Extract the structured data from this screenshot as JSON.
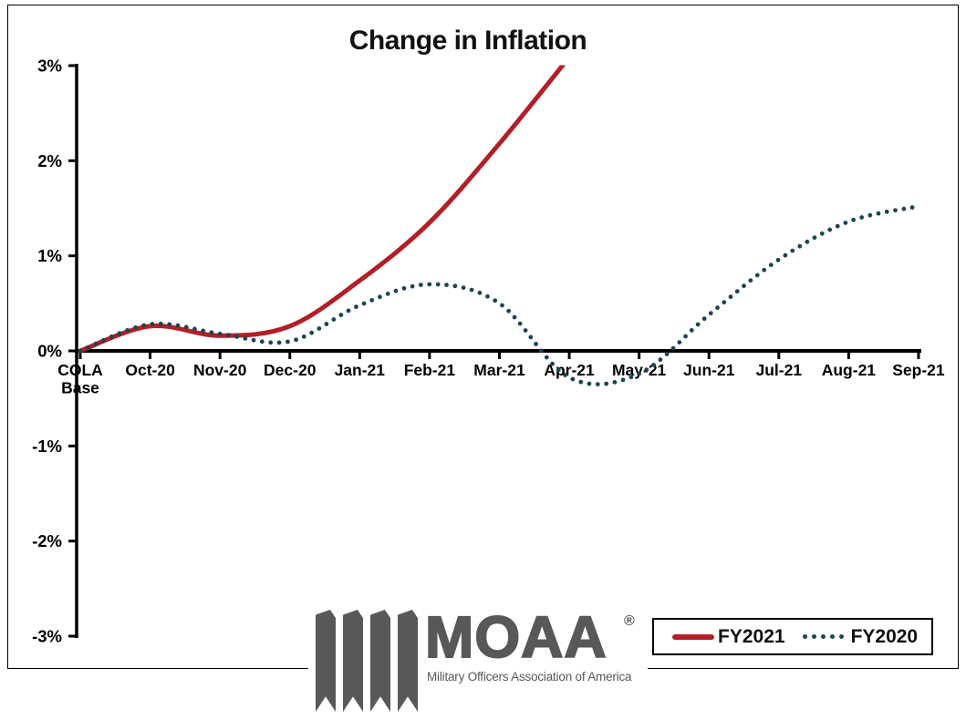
{
  "chart_data": {
    "type": "line",
    "title": "Change in Inflation",
    "categories": [
      "COLA\nBase",
      "Oct-20",
      "Nov-20",
      "Dec-20",
      "Jan-21",
      "Feb-21",
      "Mar-21",
      "Apr-21",
      "May-21",
      "Jun-21",
      "Jul-21",
      "Aug-21",
      "Sep-21"
    ],
    "xlabel": "",
    "ylabel": "",
    "ylim": [
      -3,
      3
    ],
    "y_tick_step": 1,
    "y_tick_labels": [
      "3%",
      "2%",
      "1%",
      "0%",
      "-1%",
      "-2%",
      "-3%"
    ],
    "y_tick_suffix": "%",
    "grid": false,
    "legend_position": "bottom-right",
    "series": [
      {
        "name": "FY2021",
        "style": "solid",
        "color": "#b21f26",
        "values": [
          0,
          0.26,
          0.16,
          0.26,
          0.74,
          1.35,
          2.18,
          3.09,
          null,
          null,
          null,
          null,
          null
        ],
        "clipped_at_axis_max": true
      },
      {
        "name": "FY2020",
        "style": "dotted",
        "color": "#1b4551",
        "values": [
          0,
          0.28,
          0.18,
          0.1,
          0.48,
          0.7,
          0.5,
          -0.28,
          -0.24,
          0.38,
          0.96,
          1.36,
          1.52
        ],
        "clipped_at_axis_max": false
      }
    ]
  },
  "legend": {
    "items": [
      "FY2021",
      "FY2020"
    ]
  },
  "logo": {
    "wordmark": "MOAA",
    "registered_mark": "®",
    "tagline": "Military Officers Association of America"
  },
  "colors": {
    "fy2021_line": "#b21f26",
    "fy2020_line": "#1b4551",
    "axis": "#000000",
    "logo_gray": "#58585a",
    "background": "#ffffff"
  }
}
